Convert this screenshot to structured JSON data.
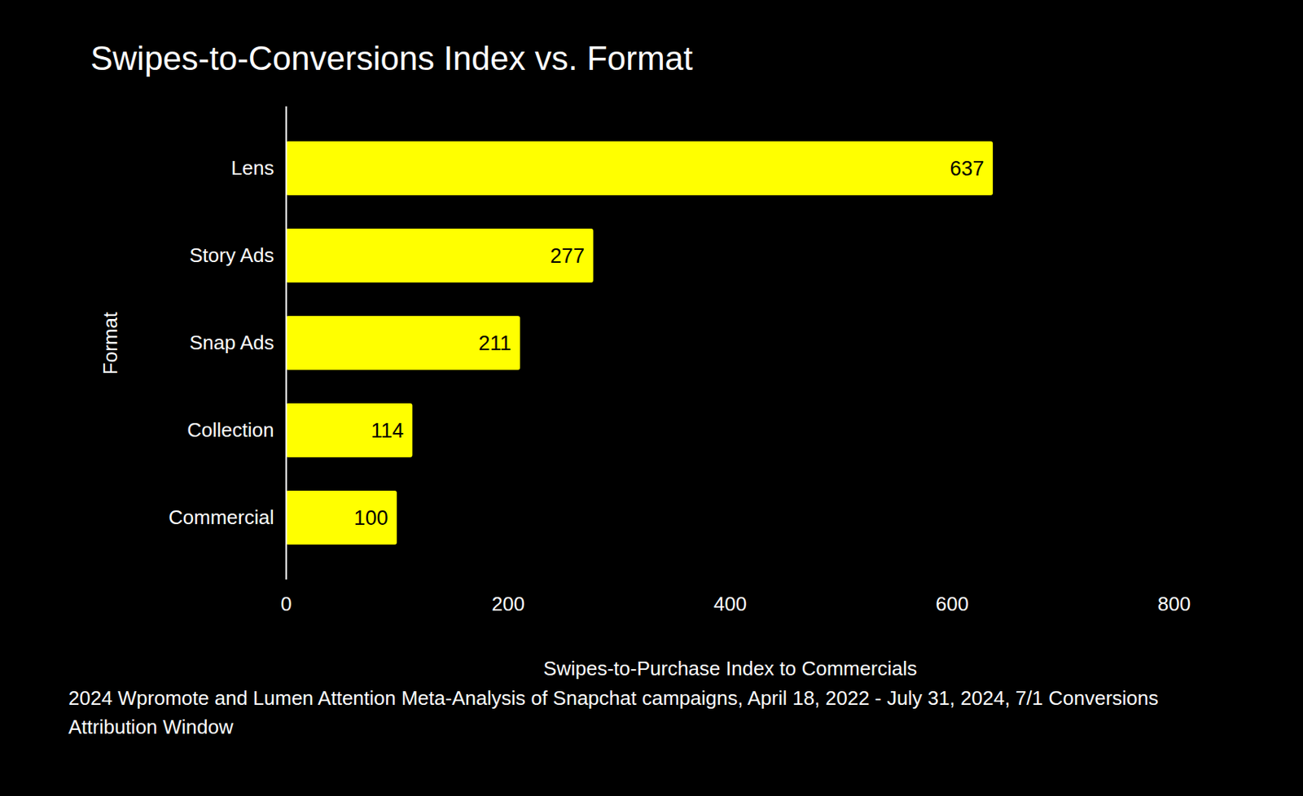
{
  "chart_data": {
    "type": "bar",
    "orientation": "horizontal",
    "title": "Swipes-to-Conversions Index vs. Format",
    "x_label": "Swipes-to-Purchase Index to Commercials",
    "y_label": "Format",
    "categories": [
      "Lens",
      "Story Ads",
      "Snap Ads",
      "Collection",
      "Commercial"
    ],
    "values": [
      637,
      277,
      211,
      114,
      100
    ],
    "color": "#ffff00",
    "xlim": [
      0,
      800
    ],
    "xticks": [
      0,
      200,
      400,
      600,
      800
    ],
    "grid": false,
    "data_labels": true,
    "caption": "2024 Wpromote and Lumen Attention Meta-Analysis of Snapchat campaigns, April 18, 2022 - July 31, 2024, 7/1 Conversions Attribution Window"
  }
}
